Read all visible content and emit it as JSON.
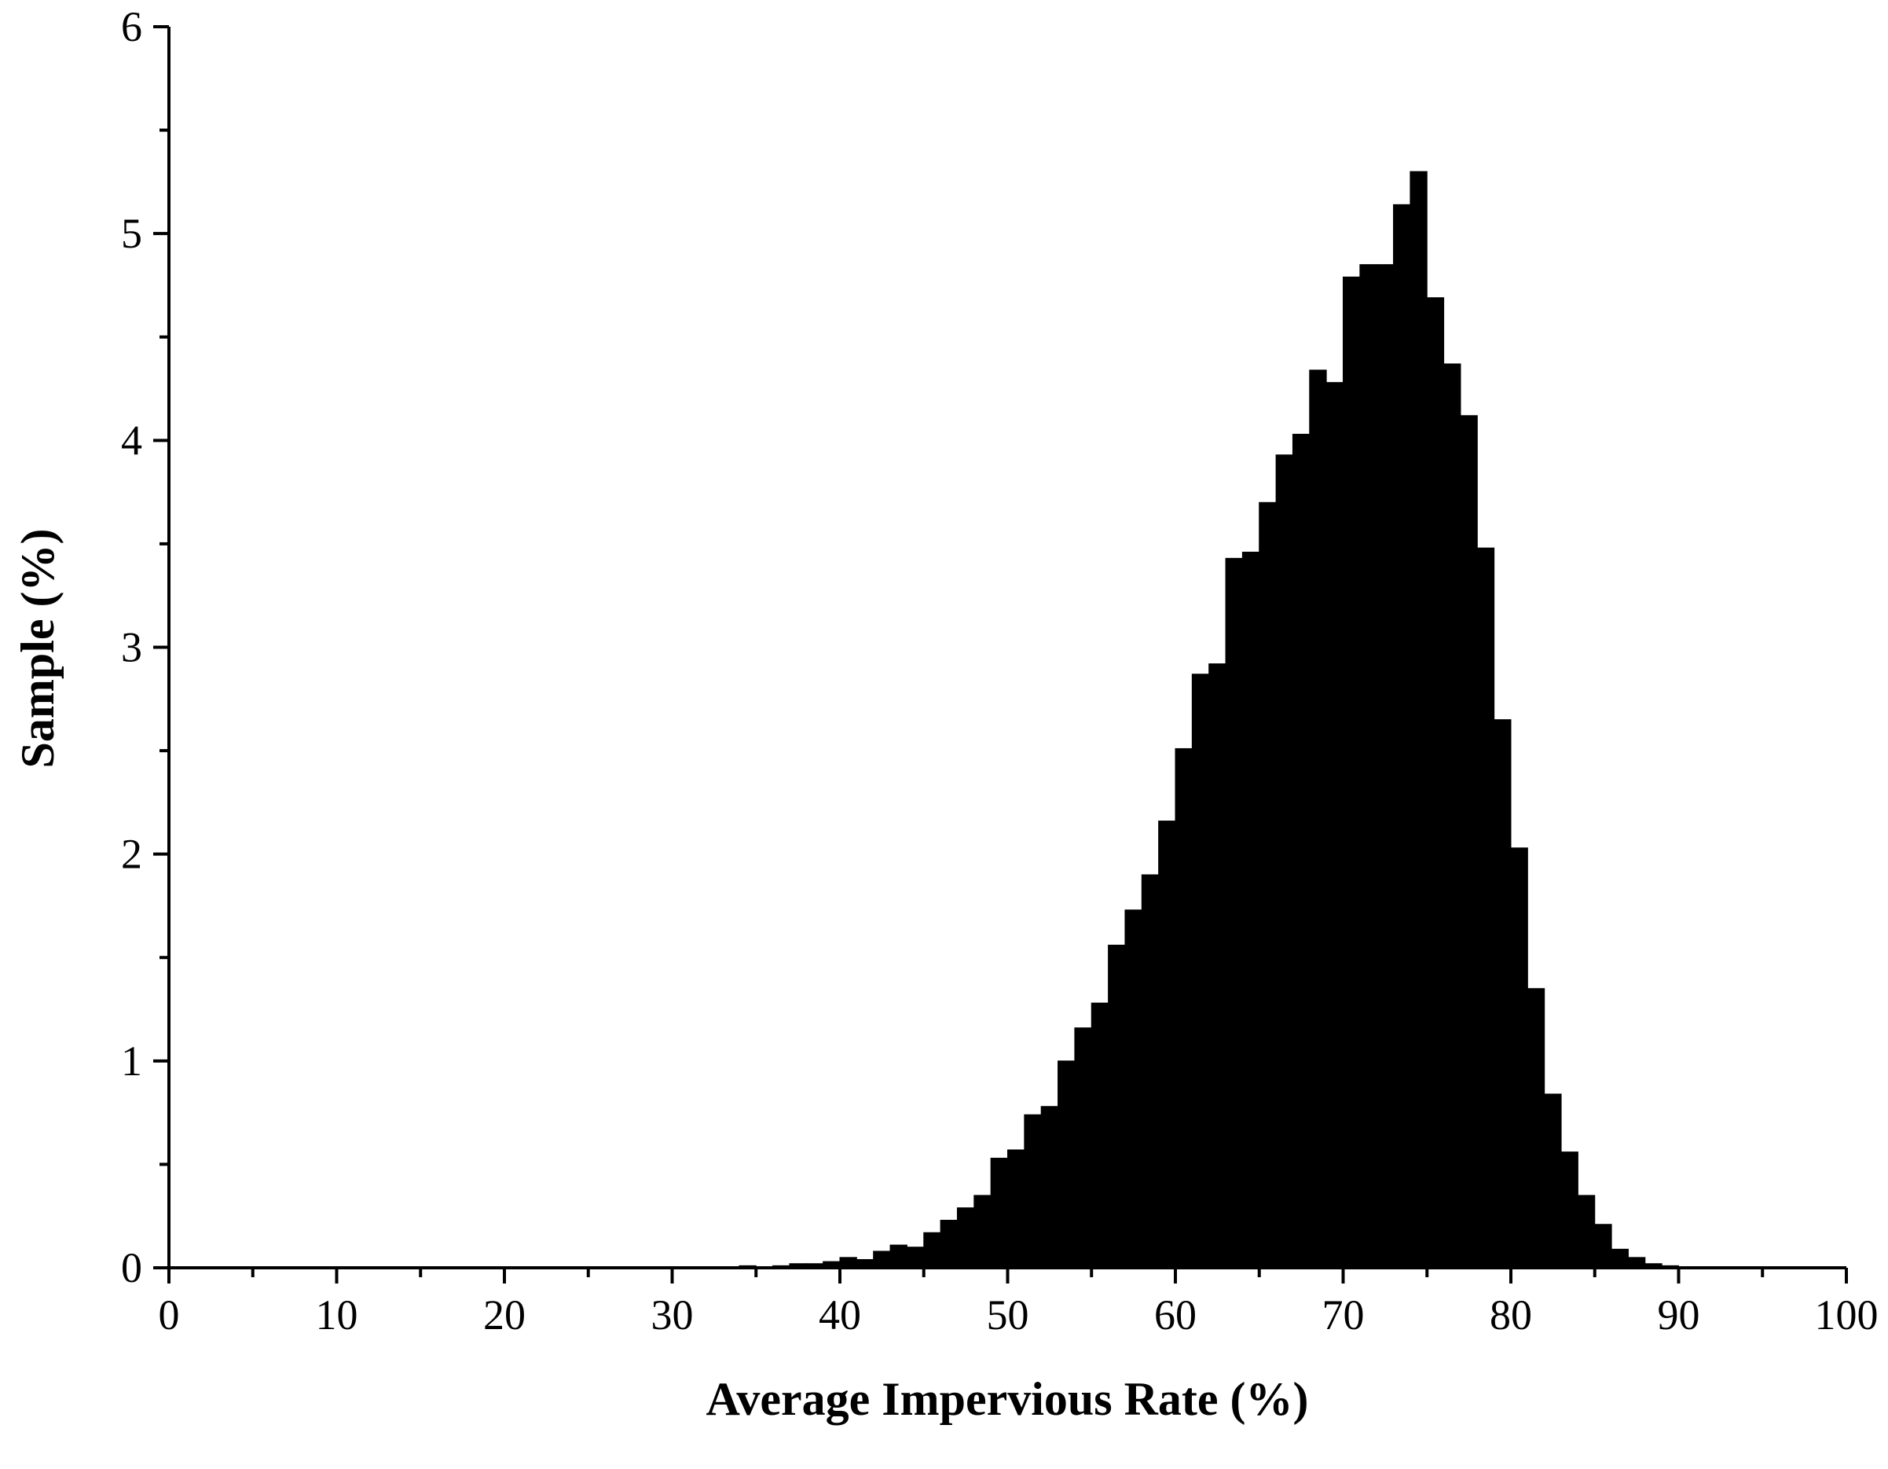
{
  "chart_data": {
    "type": "histogram",
    "x_label": "Average Impervious Rate (%)",
    "y_label": "Sample (%)",
    "bins": [
      0,
      1,
      2,
      3,
      4,
      5,
      6,
      7,
      8,
      9,
      10,
      11,
      12,
      13,
      14,
      15,
      16,
      17,
      18,
      19,
      20,
      21,
      22,
      23,
      24,
      25,
      26,
      27,
      28,
      29,
      30,
      31,
      32,
      33,
      34,
      35,
      36,
      37,
      38,
      39,
      40,
      41,
      42,
      43,
      44,
      45,
      46,
      47,
      48,
      49,
      50,
      51,
      52,
      53,
      54,
      55,
      56,
      57,
      58,
      59,
      60,
      61,
      62,
      63,
      64,
      65,
      66,
      67,
      68,
      69,
      70,
      71,
      72,
      73,
      74,
      75,
      76,
      77,
      78,
      79,
      80,
      81,
      82,
      83,
      84,
      85,
      86,
      87,
      88,
      89,
      90,
      91,
      92,
      93,
      94,
      95,
      96,
      97,
      98,
      99,
      100
    ],
    "values": [
      0,
      0,
      0,
      0,
      0,
      0,
      0,
      0,
      0,
      0,
      0,
      0,
      0,
      0,
      0,
      0,
      0,
      0,
      0,
      0,
      0,
      0,
      0,
      0,
      0,
      0,
      0,
      0,
      0,
      0,
      0,
      0,
      0,
      0.005,
      0.01,
      0.005,
      0.01,
      0.02,
      0.02,
      0.03,
      0.05,
      0.04,
      0.08,
      0.11,
      0.1,
      0.17,
      0.23,
      0.29,
      0.35,
      0.53,
      0.57,
      0.74,
      0.78,
      1.0,
      1.16,
      1.28,
      1.56,
      1.73,
      1.9,
      2.16,
      2.51,
      2.87,
      2.92,
      3.43,
      3.46,
      3.7,
      3.93,
      4.03,
      4.34,
      4.28,
      4.79,
      4.85,
      4.85,
      5.14,
      5.3,
      4.69,
      4.37,
      4.12,
      3.48,
      2.65,
      2.03,
      1.35,
      0.84,
      0.56,
      0.35,
      0.21,
      0.09,
      0.05,
      0.02,
      0.01,
      0.005,
      0,
      0,
      0,
      0,
      0,
      0,
      0,
      0,
      0,
      0
    ],
    "color": "#000000",
    "xlim": [
      0,
      100
    ],
    "xticks": [
      0,
      10,
      20,
      30,
      40,
      50,
      60,
      70,
      80,
      90,
      100
    ],
    "ylim": [
      0,
      6
    ],
    "yticks": [
      0,
      1,
      2,
      3,
      4,
      5,
      6
    ]
  }
}
